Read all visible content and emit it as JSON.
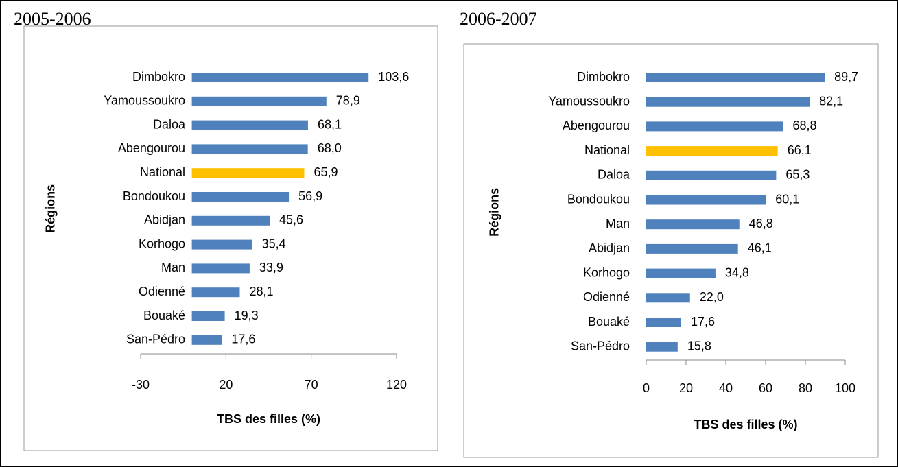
{
  "chart_data": [
    {
      "type": "barh",
      "title": "2005-2006",
      "xlabel": "TBS des filles (%)",
      "ylabel": "Régions",
      "categories": [
        "Dimbokro",
        "Yamoussoukro",
        "Daloa",
        "Abengourou",
        "National",
        "Bondoukou",
        "Abidjan",
        "Korhogo",
        "Man",
        "Odienné",
        "Bouaké",
        "San-Pédro"
      ],
      "values": [
        103.6,
        78.9,
        68.1,
        68.0,
        65.9,
        56.9,
        45.6,
        35.4,
        33.9,
        28.1,
        19.3,
        17.6
      ],
      "value_labels": [
        "103,6",
        "78,9",
        "68,1",
        "68,0",
        "65,9",
        "56,9",
        "45,6",
        "35,4",
        "33,9",
        "28,1",
        "19,3",
        "17,6"
      ],
      "colors": [
        "#4f81bd",
        "#4f81bd",
        "#4f81bd",
        "#4f81bd",
        "#ffc000",
        "#4f81bd",
        "#4f81bd",
        "#4f81bd",
        "#4f81bd",
        "#4f81bd",
        "#4f81bd",
        "#4f81bd"
      ],
      "xlim": [
        -30,
        120
      ],
      "xticks": [
        -30,
        20,
        70,
        120
      ]
    },
    {
      "type": "barh",
      "title": "2006-2007",
      "xlabel": "TBS  des filles (%)",
      "ylabel": "Régions",
      "categories": [
        "Dimbokro",
        "Yamoussoukro",
        "Abengourou",
        "National",
        "Daloa",
        "Bondoukou",
        "Man",
        "Abidjan",
        "Korhogo",
        "Odienné",
        "Bouaké",
        "San-Pédro"
      ],
      "values": [
        89.7,
        82.1,
        68.8,
        66.1,
        65.3,
        60.1,
        46.8,
        46.1,
        34.8,
        22.0,
        17.6,
        15.8
      ],
      "value_labels": [
        "89,7",
        "82,1",
        "68,8",
        "66,1",
        "65,3",
        "60,1",
        "46,8",
        "46,1",
        "34,8",
        "22,0",
        "17,6",
        "15,8"
      ],
      "colors": [
        "#4f81bd",
        "#4f81bd",
        "#4f81bd",
        "#ffc000",
        "#4f81bd",
        "#4f81bd",
        "#4f81bd",
        "#4f81bd",
        "#4f81bd",
        "#4f81bd",
        "#4f81bd",
        "#4f81bd"
      ],
      "xlim": [
        0,
        100
      ],
      "xticks": [
        0,
        20,
        40,
        60,
        80,
        100
      ]
    }
  ]
}
